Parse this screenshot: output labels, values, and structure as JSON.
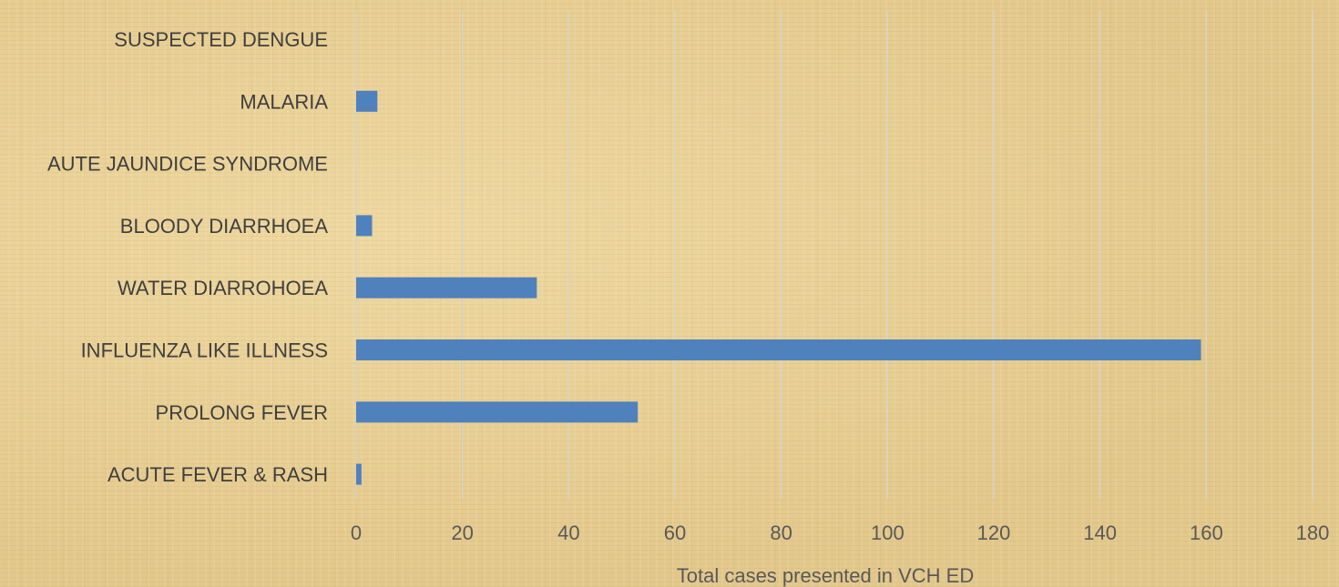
{
  "chart_data": {
    "type": "bar",
    "orientation": "horizontal",
    "categories": [
      "SUSPECTED DENGUE",
      "MALARIA",
      "AUTE JAUNDICE SYNDROME",
      "BLOODY DIARRHOEA",
      "WATER DIARROHOEA",
      "INFLUENZA LIKE ILLNESS",
      "PROLONG FEVER",
      "ACUTE FEVER & RASH"
    ],
    "values": [
      0,
      4,
      0,
      3,
      34,
      159,
      53,
      1
    ],
    "xlabel": "Total cases presented in VCH ED",
    "ylabel": "",
    "xlim": [
      0,
      180
    ],
    "x_ticks": [
      "0",
      "20",
      "40",
      "60",
      "80",
      "100",
      "120",
      "140",
      "160",
      "180"
    ],
    "grid": "vertical",
    "bar_color": "#4f81bd",
    "gridline_color": "#d4d4d4",
    "background_color": "#e6cd93"
  }
}
